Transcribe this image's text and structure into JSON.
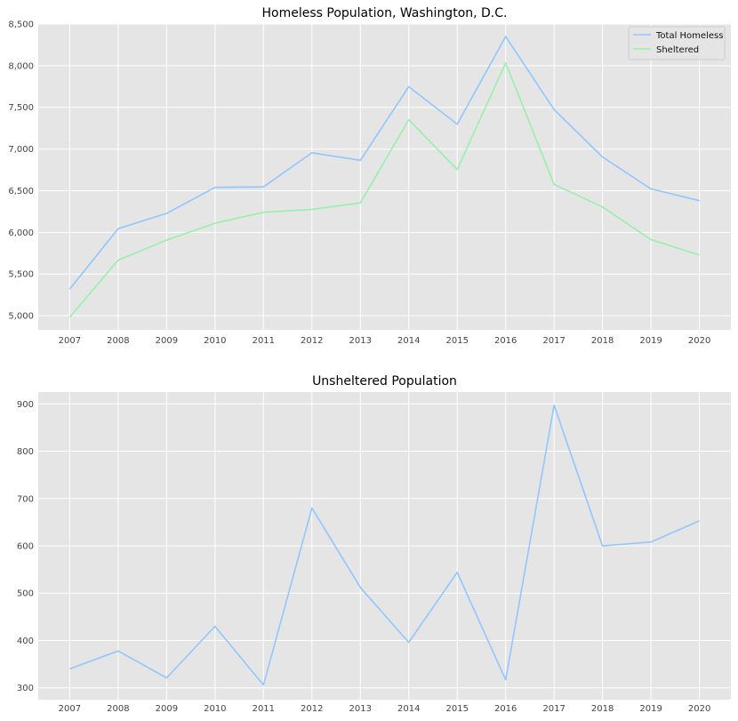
{
  "chart_data": [
    {
      "type": "line",
      "title": "Homeless Population, Washington, D.C.",
      "xlabel": "",
      "ylabel": "",
      "x": [
        2007,
        2008,
        2009,
        2010,
        2011,
        2012,
        2013,
        2014,
        2015,
        2016,
        2017,
        2018,
        2019,
        2020
      ],
      "xticks": [
        "2007",
        "2008",
        "2009",
        "2010",
        "2011",
        "2012",
        "2013",
        "2014",
        "2015",
        "2016",
        "2017",
        "2018",
        "2019",
        "2020"
      ],
      "yticks": [
        5000,
        5500,
        6000,
        6500,
        7000,
        7500,
        8000,
        8500
      ],
      "ytick_labels": [
        "5,000",
        "5,500",
        "6,000",
        "6,500",
        "7,000",
        "7,500",
        "8,000",
        "8,500"
      ],
      "ylim": [
        4830,
        8500
      ],
      "grid": true,
      "legend": "top-right",
      "series": [
        {
          "name": "Total Homeless",
          "color": "#92c6ff",
          "values": [
            5320,
            6044,
            6228,
            6539,
            6546,
            6954,
            6865,
            7748,
            7298,
            8350,
            7473,
            6904,
            6521,
            6380
          ]
        },
        {
          "name": "Sheltered",
          "color": "#97f0aa",
          "values": [
            4980,
            5666,
            5907,
            6109,
            6240,
            6274,
            6353,
            7352,
            6754,
            8033,
            6575,
            6304,
            5913,
            5727
          ]
        }
      ]
    },
    {
      "type": "line",
      "title": "Unsheltered Population",
      "xlabel": "",
      "ylabel": "",
      "x": [
        2007,
        2008,
        2009,
        2010,
        2011,
        2012,
        2013,
        2014,
        2015,
        2016,
        2017,
        2018,
        2019,
        2020
      ],
      "xticks": [
        "2007",
        "2008",
        "2009",
        "2010",
        "2011",
        "2012",
        "2013",
        "2014",
        "2015",
        "2016",
        "2017",
        "2018",
        "2019",
        "2020"
      ],
      "yticks": [
        300,
        400,
        500,
        600,
        700,
        800,
        900
      ],
      "ytick_labels": [
        "300",
        "400",
        "500",
        "600",
        "700",
        "800",
        "900"
      ],
      "ylim": [
        275,
        925
      ],
      "grid": true,
      "series": [
        {
          "color": "#92c6ff",
          "values": [
            340,
            378,
            321,
            430,
            306,
            680,
            512,
            396,
            544,
            317,
            897,
            600,
            608,
            653
          ]
        }
      ]
    }
  ]
}
